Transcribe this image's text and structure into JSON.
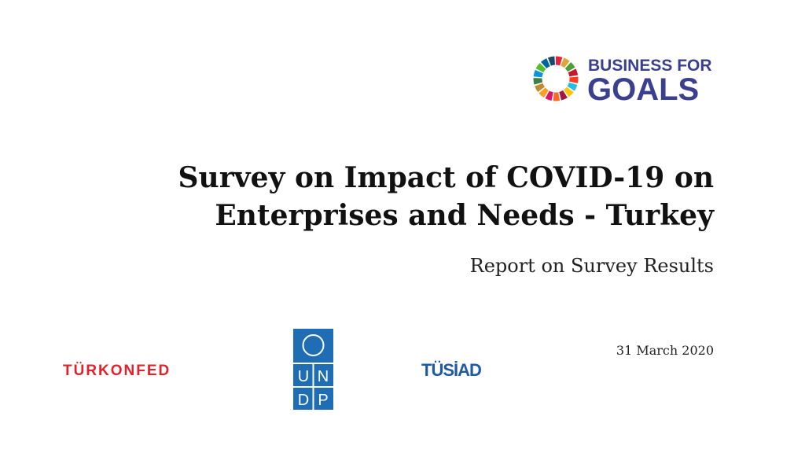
{
  "logo": {
    "line1": "BUSINESS FOR",
    "line2": "GOALS"
  },
  "title": {
    "lines": [
      "Survey on Impact of COVID-19 on",
      "Enterprises and Needs - Turkey"
    ]
  },
  "subtitle": "Report on Survey Results",
  "date": "31 March 2020",
  "partners": {
    "turkonfed": "TÜRKONFED",
    "undp": [
      "U",
      "N",
      "D",
      "P"
    ],
    "tusiad": "TÜSİAD"
  }
}
